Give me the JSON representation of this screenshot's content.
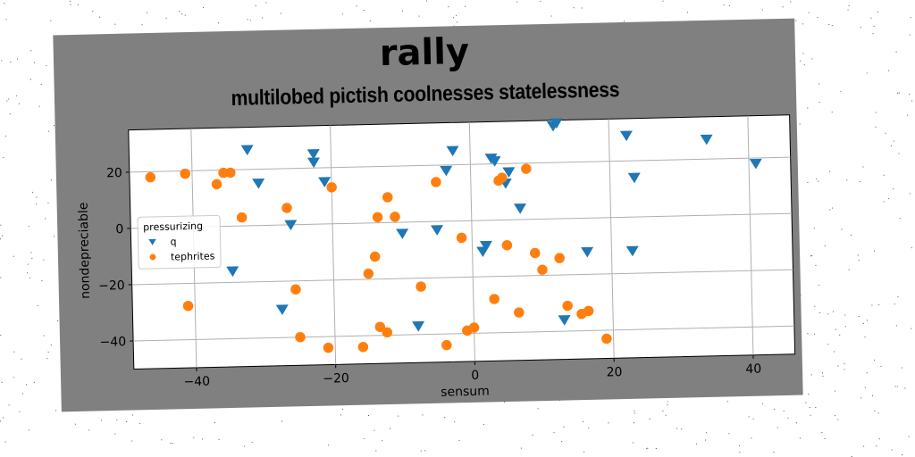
{
  "chart_data": {
    "type": "scatter",
    "title": "rally",
    "subtitle": "multilobed pictish coolnesses statelessness",
    "xlabel": "sensum",
    "ylabel": "nondepreciable",
    "xlim": [
      -49,
      46
    ],
    "ylim": [
      -50,
      35
    ],
    "xticks": [
      -40,
      -20,
      0,
      20,
      40
    ],
    "yticks": [
      -40,
      -20,
      0,
      20
    ],
    "grid": true,
    "legend": {
      "title": "pressurizing",
      "placement": "center-left"
    },
    "series": [
      {
        "name": "q",
        "marker": "triangle-down",
        "color": "#1f77b4",
        "points": [
          [
            -32,
            27
          ],
          [
            -30.5,
            15
          ],
          [
            -26,
            0
          ],
          [
            -22.5,
            25
          ],
          [
            -22.5,
            22
          ],
          [
            -21,
            15
          ],
          [
            -34.5,
            -16
          ],
          [
            -27.5,
            -30
          ],
          [
            -10,
            -4
          ],
          [
            -5,
            -3
          ],
          [
            -3.5,
            18
          ],
          [
            -2.5,
            25
          ],
          [
            -8,
            -37
          ],
          [
            2,
            -9
          ],
          [
            1.5,
            -11
          ],
          [
            3,
            22
          ],
          [
            3.5,
            21
          ],
          [
            5,
            13
          ],
          [
            5.5,
            17
          ],
          [
            7,
            4
          ],
          [
            12,
            33
          ],
          [
            12.5,
            34
          ],
          [
            13,
            -36
          ],
          [
            16.5,
            -12
          ],
          [
            22.5,
            29
          ],
          [
            23,
            -12
          ],
          [
            23.5,
            14
          ],
          [
            34,
            27
          ],
          [
            41,
            18
          ]
        ]
      },
      {
        "name": "tephrites",
        "marker": "circle",
        "color": "#ff7f0e",
        "points": [
          [
            -46,
            18
          ],
          [
            -41,
            19
          ],
          [
            -36.5,
            15
          ],
          [
            -35.5,
            19
          ],
          [
            -34.5,
            19
          ],
          [
            -33,
            3
          ],
          [
            -26.5,
            6
          ],
          [
            -20,
            13
          ],
          [
            -13.5,
            2
          ],
          [
            -12,
            9
          ],
          [
            -11,
            2
          ],
          [
            -5,
            14
          ],
          [
            -1.5,
            -6
          ],
          [
            4,
            14
          ],
          [
            4.5,
            15
          ],
          [
            5,
            -9
          ],
          [
            8,
            18
          ],
          [
            -41,
            -28
          ],
          [
            -25.5,
            -23
          ],
          [
            -15,
            -18
          ],
          [
            -14,
            -12
          ],
          [
            -7.5,
            -23
          ],
          [
            -25,
            -40
          ],
          [
            -21,
            -44
          ],
          [
            -16,
            -44
          ],
          [
            -13.5,
            -37
          ],
          [
            -12.5,
            -39
          ],
          [
            -4,
            -44
          ],
          [
            -1,
            -39
          ],
          [
            0,
            -38
          ],
          [
            3,
            -28
          ],
          [
            6.5,
            -33
          ],
          [
            9,
            -12
          ],
          [
            10,
            -18
          ],
          [
            12.5,
            -14
          ],
          [
            13.5,
            -31
          ],
          [
            15.5,
            -34
          ],
          [
            16.5,
            -33
          ],
          [
            19,
            -43
          ]
        ]
      }
    ]
  }
}
